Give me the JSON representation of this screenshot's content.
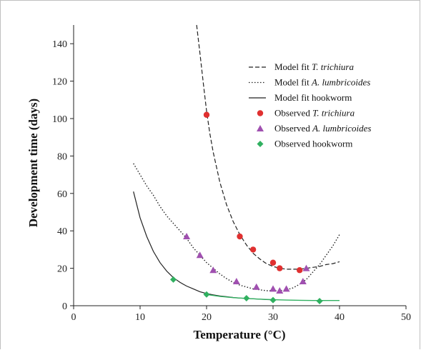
{
  "chart_data": {
    "type": "scatter",
    "xlabel": "Temperature (°C)",
    "ylabel": "Development time (days)",
    "xlim": [
      0,
      50
    ],
    "ylim": [
      0,
      150
    ],
    "xticks": [
      "0",
      "10",
      "20",
      "30",
      "40",
      "50"
    ],
    "yticks": [
      "0",
      "20",
      "40",
      "60",
      "80",
      "100",
      "120",
      "140"
    ],
    "grid": false,
    "legend_position": "top-right",
    "legend": [
      {
        "prefix": "Model fit ",
        "species": "T. trichiura",
        "style": "dashed"
      },
      {
        "prefix": "Model fit ",
        "species": "A. lumbricoides",
        "style": "dotted"
      },
      {
        "prefix": "Model fit ",
        "species": "hookworm",
        "style": "solid"
      },
      {
        "prefix": "Observed ",
        "species": "T. trichiura",
        "style": "circle"
      },
      {
        "prefix": "Observed ",
        "species": "A. lumbricoides",
        "style": "triangle"
      },
      {
        "prefix": "Observed ",
        "species": "hookworm",
        "style": "diamond"
      }
    ],
    "colors": {
      "trichiura": "#e03030",
      "lumbricoides": "#a050b0",
      "hookworm": "#30b060",
      "fit_line": "#222222",
      "hook_tail": "#30b060"
    },
    "observed": {
      "trichiura": {
        "x": [
          20,
          25,
          27,
          30,
          31,
          34
        ],
        "y": [
          102,
          37,
          30,
          23,
          20,
          19
        ]
      },
      "lumbricoides": {
        "x": [
          17,
          19,
          21,
          24.5,
          27.5,
          30,
          31,
          32,
          34.5,
          35
        ],
        "y": [
          37,
          27,
          19,
          13,
          10,
          9,
          8,
          9,
          13,
          20
        ]
      },
      "hookworm": {
        "x": [
          15,
          20,
          26,
          30,
          37
        ],
        "y": [
          14,
          6,
          4,
          3,
          2.5
        ]
      }
    },
    "model_fits": {
      "trichiura": {
        "x": [
          18.5,
          19,
          19.5,
          20,
          20.5,
          21,
          22,
          23,
          24,
          25,
          26,
          27,
          28,
          29,
          30,
          31,
          32,
          33,
          34,
          35,
          36,
          37,
          38,
          39,
          40
        ],
        "y": [
          150,
          135,
          119,
          104,
          92,
          82,
          66,
          54,
          45,
          38,
          32.5,
          28,
          25,
          22.5,
          21,
          20,
          19.5,
          19.5,
          19.5,
          20,
          20.5,
          21,
          22,
          22.5,
          23.5
        ]
      },
      "lumbricoides": {
        "x": [
          9,
          10,
          11,
          12,
          13,
          14,
          15,
          16,
          17,
          18,
          19,
          20,
          21,
          22,
          23,
          24,
          25,
          26,
          27,
          28,
          29,
          30,
          31,
          32,
          33,
          34,
          35,
          36,
          37,
          38,
          39,
          40
        ],
        "y": [
          76,
          70,
          64,
          59,
          53,
          48,
          44,
          40,
          36,
          31,
          27,
          23,
          20,
          17,
          14.5,
          12.5,
          11,
          10,
          9,
          8.5,
          8,
          8,
          8,
          8.5,
          9.5,
          11.5,
          14,
          18,
          22,
          27,
          32,
          38
        ]
      },
      "hookworm": {
        "x": [
          9,
          10,
          11,
          12,
          13,
          14,
          15,
          16,
          17,
          18,
          19,
          20,
          21,
          22,
          23,
          24,
          25,
          26,
          27,
          28,
          29,
          30
        ],
        "y": [
          61,
          47,
          37,
          29,
          23,
          18.5,
          15,
          12.5,
          10.5,
          9,
          7.5,
          6.5,
          5.8,
          5.2,
          4.8,
          4.4,
          4.1,
          3.9,
          3.7,
          3.5,
          3.3,
          3.2
        ]
      },
      "hookworm_tail": {
        "x": [
          20,
          22,
          24,
          26,
          28,
          30,
          32,
          34,
          36,
          38,
          40
        ],
        "y": [
          6,
          5,
          4.3,
          3.9,
          3.5,
          3.2,
          3,
          2.9,
          2.8,
          2.8,
          2.8
        ]
      }
    }
  }
}
